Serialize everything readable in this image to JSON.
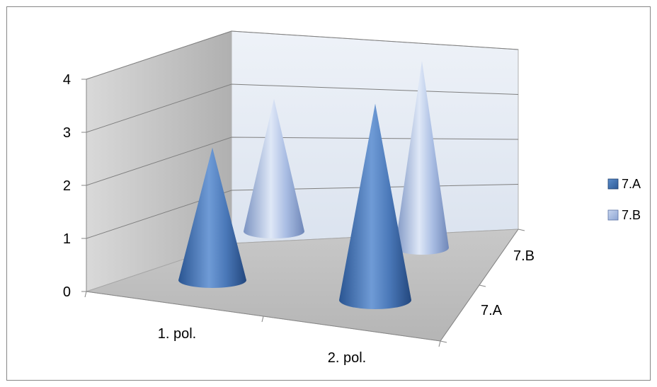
{
  "chart_data": {
    "type": "bar",
    "subtype": "3d-cone",
    "title": "",
    "xlabel": "",
    "ylabel": "",
    "categories": [
      "1. pol.",
      "2. pol."
    ],
    "depth_categories": [
      "7.A",
      "7.B"
    ],
    "y_ticks": [
      "0",
      "1",
      "2",
      "3",
      "4"
    ],
    "ylim": [
      0,
      4
    ],
    "series": [
      {
        "name": "7.A",
        "values": [
          2.5,
          3.7
        ],
        "color": "#4f81bd"
      },
      {
        "name": "7.B",
        "values": [
          2.5,
          3.7
        ],
        "color": "#a5b9e0"
      }
    ],
    "legend": {
      "position": "right"
    },
    "grid": true,
    "colors": {
      "back_wall": "#e6ecf5",
      "side_wall": "#c0c0c0",
      "floor": "#bfbfbf",
      "gridline": "#7f7f7f"
    }
  }
}
